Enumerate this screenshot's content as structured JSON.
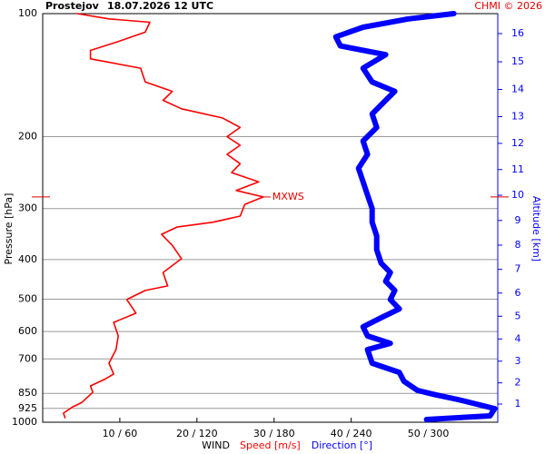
{
  "chart_data": {
    "type": "wind-profile",
    "station": "Prostejov",
    "title": "18.07.2026 12 UTC",
    "credit": "CHMI © 2026",
    "y_label": "Pressure [hPa]",
    "y2_label": "Altitude [km]",
    "x_label": "WIND",
    "ylim": [
      1000,
      100
    ],
    "log_y": true,
    "yticks": [
      100,
      200,
      300,
      400,
      500,
      600,
      700,
      850,
      925,
      1000
    ],
    "grid": true,
    "xlim": [
      0,
      59
    ],
    "x2lim": [
      0,
      354
    ],
    "xticks": [
      {
        "value": 10,
        "label": "10 / 60"
      },
      {
        "value": 20,
        "label": "20 / 120"
      },
      {
        "value": 30,
        "label": "30 / 180"
      },
      {
        "value": 40,
        "label": "40 / 240"
      },
      {
        "value": 50,
        "label": "50 / 300"
      }
    ],
    "y2ticks": [
      1,
      2,
      3,
      4,
      5,
      6,
      7,
      8,
      9,
      10,
      11,
      12,
      13,
      14,
      15,
      16
    ],
    "y2_color": "#0000ff",
    "annotation": {
      "text": "MXWS",
      "pressure": 281,
      "color": "#e00000"
    },
    "series": [
      {
        "name": "Speed [m/s]",
        "color": "#ff0000",
        "pressure": [
          975,
          950,
          917,
          894,
          845,
          815,
          786,
          762,
          717,
          664,
          615,
          570,
          541,
          501,
          476,
          464,
          430,
          398,
          369,
          347,
          333,
          324,
          313,
          293,
          281,
          271,
          258,
          245,
          233,
          221,
          210,
          200,
          190,
          180,
          171,
          163,
          155,
          147,
          136,
          129,
          123,
          117,
          111,
          105,
          103,
          100
        ],
        "values": [
          2.9,
          2.7,
          3.9,
          5.1,
          6.5,
          6.2,
          8.0,
          9.2,
          8.6,
          9.5,
          9.8,
          9.2,
          12.1,
          10.9,
          13.3,
          16.2,
          15.6,
          18.0,
          16.8,
          15.4,
          17.4,
          22.1,
          25.6,
          26.2,
          28.6,
          25.1,
          28.0,
          24.5,
          25.6,
          23.9,
          25.6,
          23.9,
          25.6,
          23.3,
          18.0,
          15.6,
          16.8,
          13.3,
          12.7,
          6.2,
          6.2,
          9.8,
          13.3,
          13.9,
          8.6,
          4.5
        ]
      },
      {
        "name": "Direction [°]",
        "color": "#0000ff",
        "axis": "x2",
        "pressure": [
          985,
          965,
          926,
          880,
          857,
          836,
          794,
          755,
          717,
          664,
          641,
          615,
          584,
          555,
          528,
          501,
          476,
          452,
          430,
          408,
          378,
          350,
          324,
          300,
          278,
          258,
          239,
          221,
          205,
          190,
          176,
          163,
          155,
          147,
          136,
          126,
          120,
          114,
          108,
          103,
          100
        ],
        "values": [
          298.6,
          348,
          351.6,
          323,
          305.7,
          291.6,
          281,
          277.4,
          256.3,
          252.7,
          270.4,
          252.7,
          249.2,
          263.3,
          277.4,
          270.4,
          273.9,
          266.8,
          270.4,
          263.3,
          259.8,
          259.8,
          256.3,
          256.3,
          252.7,
          249.2,
          245.7,
          252.7,
          249.2,
          259.8,
          256.3,
          266.8,
          273.9,
          256.3,
          249.2,
          266.8,
          231.6,
          228,
          249.2,
          284.5,
          319.8
        ]
      }
    ]
  }
}
